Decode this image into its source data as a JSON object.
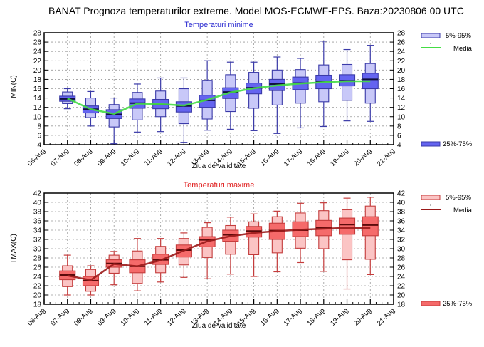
{
  "main_title": "BANAT  Prognoza temperaturilor extreme.  Model MOS-ECMWF-EPS. Baza:20230806 00 UTC",
  "chart_data": [
    {
      "type": "box",
      "title": "Temperaturi minime",
      "title_color": "#2a2ad0",
      "ylabel": "TMIN(C)",
      "xlabel": "Ziua de validitate",
      "ylim": [
        4,
        28
      ],
      "ytick_step": 2,
      "grid": true,
      "x_ticks": [
        "06-Aug",
        "07-Aug",
        "08-Aug",
        "09-Aug",
        "10-Aug",
        "11-Aug",
        "12-Aug",
        "13-Aug",
        "14-Aug",
        "15-Aug",
        "16-Aug",
        "17-Aug",
        "18-Aug",
        "19-Aug",
        "20-Aug",
        "21-Aug"
      ],
      "colors": {
        "outer": "#c8c8f8",
        "inner": "#6464f0",
        "stroke": "#3a3aa8",
        "median": "#101040",
        "mean": "#44dd44"
      },
      "legend": {
        "outer": "5%-95%",
        "mean": "Media",
        "inner": "25%-75%"
      },
      "boxes": [
        {
          "day": "07-Aug",
          "min": 11.7,
          "p5": 12.8,
          "p25": 13.3,
          "median": 13.8,
          "p75": 14.4,
          "p95": 15.3,
          "max": 16.0,
          "mean": 13.9
        },
        {
          "day": "08-Aug",
          "min": 8.0,
          "p5": 9.8,
          "p25": 10.8,
          "median": 11.6,
          "p75": 12.3,
          "p95": 14.0,
          "max": 15.4,
          "mean": 11.6
        },
        {
          "day": "09-Aug",
          "min": 4.2,
          "p5": 7.8,
          "p25": 9.6,
          "median": 10.5,
          "p75": 11.5,
          "p95": 12.6,
          "max": 14.0,
          "mean": 10.6
        },
        {
          "day": "10-Aug",
          "min": 6.7,
          "p5": 9.3,
          "p25": 11.8,
          "median": 12.9,
          "p75": 13.8,
          "p95": 15.2,
          "max": 17.0,
          "mean": 12.8
        },
        {
          "day": "11-Aug",
          "min": 6.8,
          "p5": 10.0,
          "p25": 11.7,
          "median": 12.6,
          "p75": 13.7,
          "p95": 15.5,
          "max": 18.3,
          "mean": 12.7
        },
        {
          "day": "12-Aug",
          "min": 4.5,
          "p5": 8.5,
          "p25": 11.0,
          "median": 12.3,
          "p75": 13.2,
          "p95": 16.0,
          "max": 18.3,
          "mean": 12.4
        },
        {
          "day": "13-Aug",
          "min": 7.1,
          "p5": 9.5,
          "p25": 12.0,
          "median": 13.5,
          "p75": 14.6,
          "p95": 17.8,
          "max": 22.0,
          "mean": 13.6
        },
        {
          "day": "14-Aug",
          "min": 7.3,
          "p5": 11.1,
          "p25": 13.9,
          "median": 15.3,
          "p75": 16.2,
          "p95": 19.0,
          "max": 21.7,
          "mean": 15.2
        },
        {
          "day": "15-Aug",
          "min": 7.0,
          "p5": 11.8,
          "p25": 14.9,
          "median": 16.2,
          "p75": 17.2,
          "p95": 19.5,
          "max": 21.7,
          "mean": 16.1
        },
        {
          "day": "16-Aug",
          "min": 6.4,
          "p5": 12.5,
          "p25": 15.6,
          "median": 17.0,
          "p75": 18.0,
          "p95": 20.0,
          "max": 22.8,
          "mean": 16.7
        },
        {
          "day": "17-Aug",
          "min": 7.6,
          "p5": 12.9,
          "p25": 15.8,
          "median": 17.2,
          "p75": 18.5,
          "p95": 20.1,
          "max": 22.5,
          "mean": 17.1
        },
        {
          "day": "18-Aug",
          "min": 7.9,
          "p5": 13.2,
          "p25": 16.0,
          "median": 17.6,
          "p75": 18.9,
          "p95": 21.1,
          "max": 26.2,
          "mean": 17.4
        },
        {
          "day": "19-Aug",
          "min": 9.1,
          "p5": 13.5,
          "p25": 16.6,
          "median": 17.7,
          "p75": 19.0,
          "p95": 21.2,
          "max": 24.4,
          "mean": 17.6
        },
        {
          "day": "20-Aug",
          "min": 9.0,
          "p5": 12.9,
          "p25": 16.0,
          "median": 18.0,
          "p75": 19.3,
          "p95": 21.4,
          "max": 25.3,
          "mean": 17.6
        }
      ]
    },
    {
      "type": "box",
      "title": "Temperaturi maxime",
      "title_color": "#e02020",
      "ylabel": "TMAX(C)",
      "xlabel": "Ziua de validitate",
      "ylim": [
        18,
        42
      ],
      "ytick_step": 2,
      "grid": true,
      "x_ticks": [
        "06-Aug",
        "07-Aug",
        "08-Aug",
        "09-Aug",
        "10-Aug",
        "11-Aug",
        "12-Aug",
        "13-Aug",
        "14-Aug",
        "15-Aug",
        "16-Aug",
        "17-Aug",
        "18-Aug",
        "19-Aug",
        "20-Aug",
        "21-Aug"
      ],
      "colors": {
        "outer": "#fbc4c4",
        "inner": "#f56a6a",
        "stroke": "#c43c3c",
        "median": "#5a0a0a",
        "mean": "#9a1a1a"
      },
      "legend": {
        "outer": "5%-95%",
        "mean": "Media",
        "inner": "25%-75%"
      },
      "boxes": [
        {
          "day": "07-Aug",
          "min": 20.0,
          "p5": 21.8,
          "p25": 23.3,
          "median": 24.3,
          "p75": 25.2,
          "p95": 26.3,
          "max": 28.6,
          "mean": 24.2
        },
        {
          "day": "08-Aug",
          "min": 20.0,
          "p5": 20.8,
          "p25": 22.0,
          "median": 23.1,
          "p75": 24.0,
          "p95": 25.5,
          "max": 26.3,
          "mean": 23.2
        },
        {
          "day": "09-Aug",
          "min": 22.2,
          "p5": 24.7,
          "p25": 26.0,
          "median": 26.8,
          "p75": 27.6,
          "p95": 28.6,
          "max": 29.4,
          "mean": 26.7
        },
        {
          "day": "10-Aug",
          "min": 20.9,
          "p5": 22.5,
          "p25": 24.8,
          "median": 26.2,
          "p75": 27.6,
          "p95": 29.5,
          "max": 32.2,
          "mean": 26.2
        },
        {
          "day": "11-Aug",
          "min": 22.8,
          "p5": 24.8,
          "p25": 26.6,
          "median": 27.6,
          "p75": 28.8,
          "p95": 30.5,
          "max": 32.2,
          "mean": 27.5
        },
        {
          "day": "12-Aug",
          "min": 23.8,
          "p5": 26.5,
          "p25": 28.2,
          "median": 29.7,
          "p75": 30.8,
          "p95": 32.2,
          "max": 33.4,
          "mean": 29.6
        },
        {
          "day": "13-Aug",
          "min": 23.5,
          "p5": 28.1,
          "p25": 30.4,
          "median": 31.9,
          "p75": 32.6,
          "p95": 34.6,
          "max": 35.6,
          "mean": 31.6
        },
        {
          "day": "14-Aug",
          "min": 24.5,
          "p5": 28.8,
          "p25": 31.6,
          "median": 33.0,
          "p75": 34.0,
          "p95": 35.0,
          "max": 36.8,
          "mean": 32.7
        },
        {
          "day": "15-Aug",
          "min": 24.0,
          "p5": 28.7,
          "p25": 32.5,
          "median": 33.8,
          "p75": 34.8,
          "p95": 35.8,
          "max": 37.5,
          "mean": 33.4
        },
        {
          "day": "16-Aug",
          "min": 25.0,
          "p5": 29.1,
          "p25": 32.0,
          "median": 33.9,
          "p75": 35.5,
          "p95": 36.9,
          "max": 38.1,
          "mean": 33.8
        },
        {
          "day": "17-Aug",
          "min": 27.0,
          "p5": 30.1,
          "p25": 32.6,
          "median": 34.0,
          "p75": 35.8,
          "p95": 37.7,
          "max": 39.8,
          "mean": 34.1
        },
        {
          "day": "18-Aug",
          "min": 25.1,
          "p5": 30.0,
          "p25": 32.8,
          "median": 34.5,
          "p75": 36.1,
          "p95": 38.2,
          "max": 39.9,
          "mean": 34.3
        },
        {
          "day": "19-Aug",
          "min": 21.3,
          "p5": 27.6,
          "p25": 33.1,
          "median": 35.2,
          "p75": 36.6,
          "p95": 38.4,
          "max": 40.9,
          "mean": 34.5
        },
        {
          "day": "20-Aug",
          "min": 24.4,
          "p5": 27.7,
          "p25": 32.8,
          "median": 35.1,
          "p75": 36.9,
          "p95": 39.2,
          "max": 41.1,
          "mean": 34.5
        }
      ]
    }
  ]
}
